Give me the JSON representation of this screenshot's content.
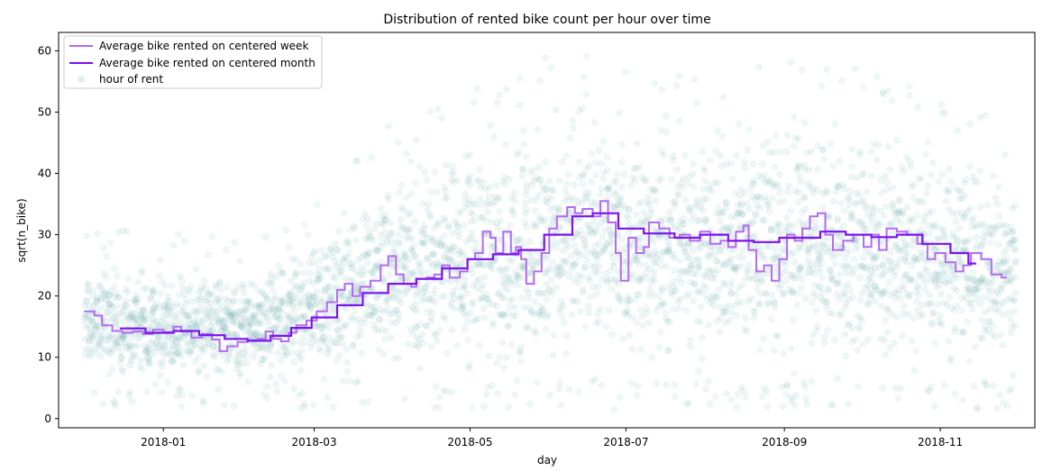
{
  "chart_data": {
    "type": "line+scatter",
    "title": "Distribution of rented bike count per hour over time",
    "xlabel": "day",
    "ylabel": "sqrt(n_bike)",
    "x_ticks": [
      "2018-01",
      "2018-03",
      "2018-05",
      "2018-07",
      "2018-09",
      "2018-11"
    ],
    "x_tick_dates": [
      "2018-01-01",
      "2018-03-01",
      "2018-05-01",
      "2018-07-01",
      "2018-09-01",
      "2018-11-01"
    ],
    "xlim": [
      "2017-11-21",
      "2018-12-08"
    ],
    "y_ticks": [
      0,
      10,
      20,
      30,
      40,
      50,
      60
    ],
    "ylim": [
      -1.5,
      63
    ],
    "legend_position": "upper-left",
    "colors": {
      "week": "#b36bf2",
      "month": "#7b12f0",
      "scatter": "#2e8b8b"
    },
    "series": [
      {
        "name": "Average bike rented on centered week",
        "kind": "line",
        "points": [
          [
            "2017-12-01",
            17.5
          ],
          [
            "2017-12-05",
            16.8
          ],
          [
            "2017-12-08",
            15.2
          ],
          [
            "2017-12-12",
            14.3
          ],
          [
            "2017-12-16",
            14.0
          ],
          [
            "2017-12-20",
            14.2
          ],
          [
            "2017-12-24",
            13.8
          ],
          [
            "2017-12-28",
            14.5
          ],
          [
            "2018-01-01",
            14.1
          ],
          [
            "2018-01-05",
            15.0
          ],
          [
            "2018-01-08",
            14.2
          ],
          [
            "2018-01-12",
            13.2
          ],
          [
            "2018-01-16",
            13.8
          ],
          [
            "2018-01-20",
            12.9
          ],
          [
            "2018-01-23",
            11.0
          ],
          [
            "2018-01-26",
            11.8
          ],
          [
            "2018-01-30",
            12.5
          ],
          [
            "2018-02-03",
            12.8
          ],
          [
            "2018-02-07",
            13.0
          ],
          [
            "2018-02-10",
            14.2
          ],
          [
            "2018-02-13",
            13.0
          ],
          [
            "2018-02-16",
            12.6
          ],
          [
            "2018-02-19",
            14.0
          ],
          [
            "2018-02-22",
            15.2
          ],
          [
            "2018-02-26",
            16.0
          ],
          [
            "2018-03-02",
            17.5
          ],
          [
            "2018-03-06",
            19.0
          ],
          [
            "2018-03-10",
            21.0
          ],
          [
            "2018-03-13",
            22.0
          ],
          [
            "2018-03-16",
            20.0
          ],
          [
            "2018-03-19",
            21.5
          ],
          [
            "2018-03-23",
            22.5
          ],
          [
            "2018-03-27",
            25.0
          ],
          [
            "2018-03-30",
            26.5
          ],
          [
            "2018-04-02",
            23.5
          ],
          [
            "2018-04-05",
            22.0
          ],
          [
            "2018-04-08",
            21.5
          ],
          [
            "2018-04-10",
            22.8
          ],
          [
            "2018-04-14",
            23.0
          ],
          [
            "2018-04-17",
            23.5
          ],
          [
            "2018-04-20",
            25.0
          ],
          [
            "2018-04-23",
            23.0
          ],
          [
            "2018-04-27",
            24.0
          ],
          [
            "2018-04-30",
            26.0
          ],
          [
            "2018-05-03",
            27.0
          ],
          [
            "2018-05-06",
            30.5
          ],
          [
            "2018-05-09",
            29.5
          ],
          [
            "2018-05-11",
            27.0
          ],
          [
            "2018-05-14",
            30.5
          ],
          [
            "2018-05-17",
            27.0
          ],
          [
            "2018-05-19",
            28.0
          ],
          [
            "2018-05-21",
            26.0
          ],
          [
            "2018-05-23",
            22.0
          ],
          [
            "2018-05-26",
            24.0
          ],
          [
            "2018-05-29",
            27.0
          ],
          [
            "2018-06-01",
            31.0
          ],
          [
            "2018-06-04",
            33.0
          ],
          [
            "2018-06-08",
            34.5
          ],
          [
            "2018-06-11",
            33.5
          ],
          [
            "2018-06-14",
            34.2
          ],
          [
            "2018-06-18",
            33.0
          ],
          [
            "2018-06-21",
            35.5
          ],
          [
            "2018-06-24",
            32.0
          ],
          [
            "2018-06-27",
            27.0
          ],
          [
            "2018-06-29",
            22.5
          ],
          [
            "2018-07-02",
            29.5
          ],
          [
            "2018-07-05",
            27.0
          ],
          [
            "2018-07-08",
            28.0
          ],
          [
            "2018-07-10",
            32.0
          ],
          [
            "2018-07-14",
            31.0
          ],
          [
            "2018-07-18",
            29.5
          ],
          [
            "2018-07-22",
            30.0
          ],
          [
            "2018-07-26",
            29.0
          ],
          [
            "2018-07-30",
            30.5
          ],
          [
            "2018-08-03",
            28.5
          ],
          [
            "2018-08-07",
            29.0
          ],
          [
            "2018-08-10",
            28.0
          ],
          [
            "2018-08-13",
            30.5
          ],
          [
            "2018-08-16",
            31.5
          ],
          [
            "2018-08-18",
            27.5
          ],
          [
            "2018-08-21",
            24.0
          ],
          [
            "2018-08-24",
            25.0
          ],
          [
            "2018-08-27",
            22.5
          ],
          [
            "2018-08-30",
            26.0
          ],
          [
            "2018-09-02",
            30.0
          ],
          [
            "2018-09-05",
            29.0
          ],
          [
            "2018-09-08",
            31.0
          ],
          [
            "2018-09-11",
            33.0
          ],
          [
            "2018-09-14",
            33.5
          ],
          [
            "2018-09-17",
            30.0
          ],
          [
            "2018-09-20",
            27.5
          ],
          [
            "2018-09-24",
            29.0
          ],
          [
            "2018-09-28",
            30.0
          ],
          [
            "2018-10-02",
            28.0
          ],
          [
            "2018-10-05",
            30.0
          ],
          [
            "2018-10-08",
            27.5
          ],
          [
            "2018-10-11",
            31.0
          ],
          [
            "2018-10-15",
            30.5
          ],
          [
            "2018-10-19",
            30.0
          ],
          [
            "2018-10-23",
            28.5
          ],
          [
            "2018-10-27",
            26.0
          ],
          [
            "2018-10-30",
            27.0
          ],
          [
            "2018-11-03",
            25.5
          ],
          [
            "2018-11-07",
            24.0
          ],
          [
            "2018-11-10",
            25.0
          ],
          [
            "2018-11-13",
            27.0
          ],
          [
            "2018-11-17",
            26.0
          ],
          [
            "2018-11-21",
            23.5
          ],
          [
            "2018-11-25",
            23.0
          ],
          [
            "2018-11-27",
            23.0
          ]
        ]
      },
      {
        "name": "Average bike rented on centered month",
        "kind": "line",
        "points": [
          [
            "2017-12-15",
            14.7
          ],
          [
            "2017-12-25",
            14.0
          ],
          [
            "2018-01-05",
            14.3
          ],
          [
            "2018-01-15",
            13.6
          ],
          [
            "2018-01-25",
            13.0
          ],
          [
            "2018-02-03",
            12.7
          ],
          [
            "2018-02-12",
            13.5
          ],
          [
            "2018-02-20",
            14.8
          ],
          [
            "2018-02-28",
            16.5
          ],
          [
            "2018-03-10",
            18.5
          ],
          [
            "2018-03-20",
            20.5
          ],
          [
            "2018-03-30",
            22.0
          ],
          [
            "2018-04-10",
            22.8
          ],
          [
            "2018-04-20",
            24.5
          ],
          [
            "2018-04-30",
            26.0
          ],
          [
            "2018-05-10",
            26.8
          ],
          [
            "2018-05-20",
            27.5
          ],
          [
            "2018-05-30",
            30.0
          ],
          [
            "2018-06-10",
            33.0
          ],
          [
            "2018-06-18",
            33.5
          ],
          [
            "2018-06-28",
            31.0
          ],
          [
            "2018-07-08",
            30.2
          ],
          [
            "2018-07-20",
            29.5
          ],
          [
            "2018-07-30",
            30.0
          ],
          [
            "2018-08-10",
            29.0
          ],
          [
            "2018-08-20",
            28.8
          ],
          [
            "2018-08-30",
            29.5
          ],
          [
            "2018-09-08",
            29.5
          ],
          [
            "2018-09-15",
            30.5
          ],
          [
            "2018-09-25",
            30.0
          ],
          [
            "2018-10-05",
            29.6
          ],
          [
            "2018-10-15",
            30.0
          ],
          [
            "2018-10-25",
            28.5
          ],
          [
            "2018-11-05",
            27.0
          ],
          [
            "2018-11-12",
            25.3
          ],
          [
            "2018-11-15",
            25.3
          ]
        ]
      },
      {
        "name": "hour of rent",
        "kind": "scatter",
        "band": [
          [
            "2017-12-01",
            5.5,
            26.5
          ],
          [
            "2018-01-01",
            5.0,
            25.5
          ],
          [
            "2018-02-01",
            5.0,
            24.5
          ],
          [
            "2018-03-01",
            5.5,
            32.0
          ],
          [
            "2018-04-01",
            4.0,
            44.0
          ],
          [
            "2018-05-01",
            4.0,
            49.0
          ],
          [
            "2018-06-01",
            5.0,
            55.0
          ],
          [
            "2018-07-01",
            5.0,
            54.0
          ],
          [
            "2018-08-01",
            6.0,
            50.0
          ],
          [
            "2018-09-01",
            5.0,
            54.0
          ],
          [
            "2018-10-01",
            5.0,
            52.0
          ],
          [
            "2018-11-01",
            5.0,
            48.0
          ],
          [
            "2018-11-30",
            6.0,
            42.0
          ]
        ]
      }
    ]
  }
}
